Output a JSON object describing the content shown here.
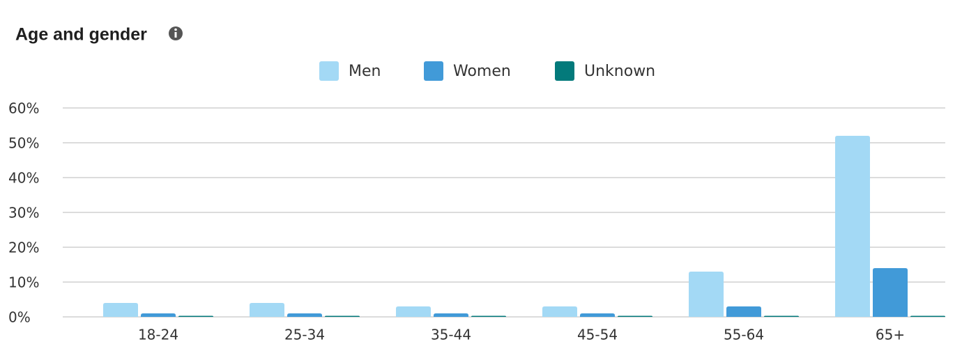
{
  "chart_data": {
    "type": "bar",
    "title": "Age and gender",
    "categories": [
      "18-24",
      "25-34",
      "35-44",
      "45-54",
      "55-64",
      "65+"
    ],
    "series": [
      {
        "name": "Men",
        "color": "#a3d9f5",
        "values": [
          4,
          4,
          3,
          3,
          13,
          52
        ]
      },
      {
        "name": "Women",
        "color": "#419ad8",
        "values": [
          1,
          1,
          1,
          1,
          3,
          14
        ]
      },
      {
        "name": "Unknown",
        "color": "#037a7b",
        "values": [
          0.3,
          0.3,
          0.3,
          0.3,
          0.3,
          0.3
        ]
      }
    ],
    "ylim": [
      0,
      60
    ],
    "yticks": [
      {
        "value": 0,
        "label": "0%"
      },
      {
        "value": 10,
        "label": "10%"
      },
      {
        "value": 20,
        "label": "20%"
      },
      {
        "value": 30,
        "label": "30%"
      },
      {
        "value": 40,
        "label": "40%"
      },
      {
        "value": 50,
        "label": "50%"
      },
      {
        "value": 60,
        "label": "60%"
      }
    ],
    "grid": true,
    "legend": "top"
  }
}
